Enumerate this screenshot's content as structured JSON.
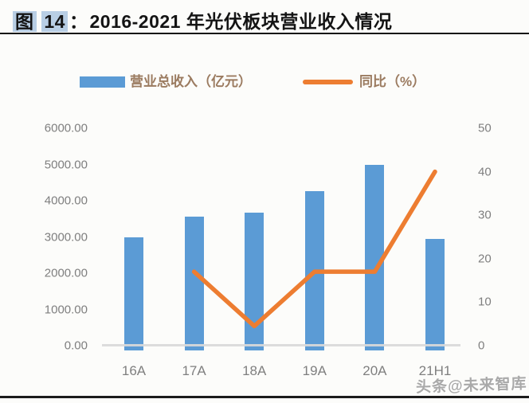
{
  "header": {
    "figure_label": "图",
    "figure_number": "14",
    "separator": "：",
    "title_text": "2016-2021 年光伏板块营业收入情况"
  },
  "legend": {
    "position": "top",
    "items": [
      {
        "label": "营业总收入（亿元）",
        "swatch": "bar-swatch",
        "color": "#5b9bd5"
      },
      {
        "label": "同比（%）",
        "swatch": "line-swatch",
        "color": "#ed7d31"
      }
    ]
  },
  "chart_data": {
    "type": "bar",
    "subtype": "combo-bar-line",
    "categories": [
      "16A",
      "17A",
      "18A",
      "19A",
      "20A",
      "21H1"
    ],
    "series": [
      {
        "name": "营业总收入（亿元）",
        "type": "bar",
        "axis": "left",
        "color": "#5b9bd5",
        "values": [
          3000,
          3550,
          3670,
          4270,
          5000,
          2940
        ]
      },
      {
        "name": "同比（%）",
        "type": "line",
        "axis": "right",
        "color": "#ed7d31",
        "values": [
          null,
          17,
          4.5,
          17,
          17,
          40
        ]
      }
    ],
    "left_axis": {
      "min": 0,
      "max": 6000,
      "tick_labels": [
        "6000.00",
        "5000.00",
        "4000.00",
        "3000.00",
        "2000.00",
        "1000.00",
        "0.00"
      ]
    },
    "right_axis": {
      "min": 0,
      "max": 50,
      "tick_labels": [
        "50",
        "40",
        "30",
        "20",
        "10",
        "0"
      ]
    },
    "grid": false,
    "legend_position": "top",
    "title": "2016-2021 年光伏板块营业收入情况"
  },
  "watermark": {
    "text": "头条@未来智库"
  },
  "colors": {
    "bar": "#5b9bd5",
    "line": "#ed7d31",
    "title_highlight": "#b8cee4",
    "axis_text": "#7f7f7f",
    "legend_text": "#9b7b60",
    "axis_line": "#d9d9d9"
  }
}
